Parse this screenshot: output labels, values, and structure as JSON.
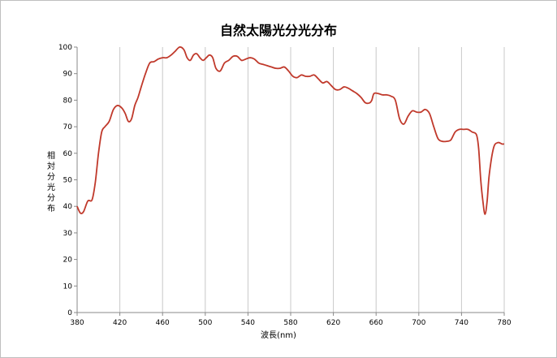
{
  "chart_data": {
    "type": "line",
    "title": "自然太陽光分光分布",
    "xlabel": "波長(nm)",
    "ylabel": "相対分光分布",
    "xlim": [
      380,
      780
    ],
    "ylim": [
      0,
      100
    ],
    "xticks": [
      380,
      420,
      460,
      500,
      540,
      580,
      620,
      660,
      700,
      740,
      780
    ],
    "yticks": [
      0,
      10,
      20,
      30,
      40,
      50,
      60,
      70,
      80,
      90,
      100
    ],
    "grid": "vertical",
    "colors": {
      "series": "#c0392b",
      "grid": "#c8c8c8",
      "axis": "#888888"
    },
    "series": [
      {
        "x": [
          380,
          383,
          386,
          390,
          394,
          397,
          400,
          403,
          406,
          410,
          414,
          418,
          422,
          425,
          428,
          431,
          434,
          437,
          440,
          444,
          448,
          452,
          456,
          460,
          464,
          468,
          472,
          476,
          480,
          483,
          486,
          489,
          492,
          495,
          498,
          501,
          504,
          507,
          510,
          514,
          518,
          522,
          526,
          530,
          534,
          538,
          542,
          546,
          550,
          554,
          558,
          562,
          566,
          570,
          574,
          578,
          582,
          586,
          590,
          594,
          598,
          602,
          606,
          610,
          614,
          618,
          622,
          626,
          630,
          634,
          638,
          642,
          646,
          650,
          654,
          656,
          658,
          662,
          666,
          670,
          674,
          678,
          682,
          686,
          690,
          694,
          698,
          702,
          706,
          710,
          714,
          718,
          722,
          726,
          730,
          734,
          738,
          742,
          746,
          750,
          754,
          756,
          758,
          760,
          762,
          764,
          766,
          770,
          774,
          778,
          780
        ],
        "y": [
          40,
          37.5,
          38,
          42,
          42.5,
          49,
          60,
          68,
          70,
          72,
          76.5,
          78,
          77,
          75,
          72,
          73,
          78,
          81,
          85,
          90,
          94,
          94.5,
          95.5,
          96,
          96,
          97,
          98.5,
          100,
          99,
          96,
          95,
          97,
          97.5,
          96,
          95,
          96,
          97,
          96,
          92,
          91,
          94,
          95,
          96.5,
          96.5,
          95,
          95.5,
          96,
          95.5,
          94,
          93.5,
          93,
          92.5,
          92,
          92,
          92.5,
          91,
          89,
          88.5,
          89.5,
          89,
          89,
          89.5,
          88,
          86.5,
          87,
          85.5,
          84,
          84,
          85,
          84.5,
          83.5,
          82.5,
          81,
          79,
          79,
          80,
          82.5,
          82.5,
          82,
          82,
          81.5,
          80,
          73,
          71,
          74,
          76,
          75.5,
          75.5,
          76.5,
          75,
          70,
          65.5,
          64.5,
          64.5,
          65,
          68,
          69,
          69,
          69,
          68,
          67,
          62,
          50,
          42,
          37,
          42,
          52,
          62,
          64,
          63.5,
          63.5
        ]
      }
    ]
  }
}
